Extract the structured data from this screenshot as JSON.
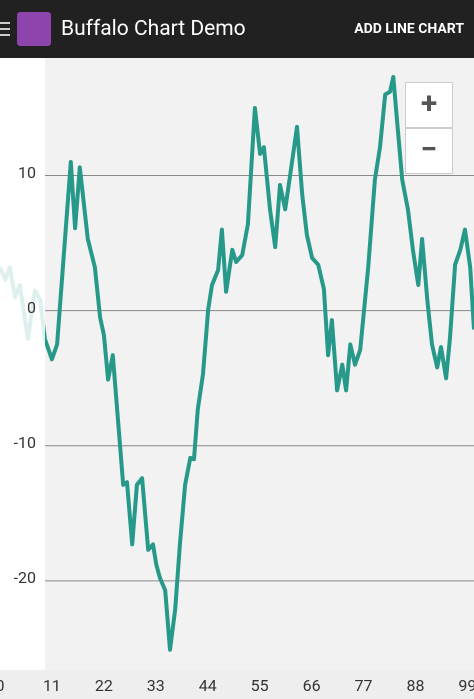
{
  "app_bar": {
    "title": "Buffalo Chart Demo",
    "action": "ADD LINE CHART"
  },
  "zoom_controls": [
    "+",
    "−"
  ],
  "chart_data": {
    "type": "line",
    "x": [
      0,
      1.1,
      2.1,
      3.2,
      4.2,
      5.9,
      7.4,
      8.5,
      9.5,
      11.0,
      12.1,
      13.6,
      15.0,
      15.9,
      16.9,
      18.6,
      20.1,
      21.2,
      22.0,
      22.9,
      23.9,
      25.0,
      26.1,
      26.9,
      28.0,
      29.0,
      30.1,
      31.4,
      32.4,
      33.1,
      33.9,
      35.0,
      36.0,
      37.1,
      38.1,
      39.2,
      40.3,
      41.1,
      41.9,
      43.0,
      44.1,
      44.9,
      46.2,
      47.0,
      47.9,
      49.2,
      50.0,
      51.3,
      52.5,
      54.0,
      55.1,
      55.9,
      57.2,
      58.3,
      59.3,
      60.4,
      61.4,
      62.9,
      64.0,
      65.0,
      66.1,
      67.4,
      68.6,
      69.5,
      70.3,
      71.4,
      72.5,
      73.3,
      74.2,
      75.2,
      76.3,
      78.0,
      79.4,
      80.5,
      81.6,
      82.6,
      83.3,
      84.1,
      85.2,
      86.4,
      87.5,
      88.6,
      89.4,
      90.5,
      91.5,
      92.6,
      93.4,
      94.5,
      95.3,
      96.4,
      97.5,
      98.5,
      99.6,
      100.4
    ],
    "series": [
      {
        "color": "#26998a",
        "values": [
          3.2,
          2.3,
          3.2,
          1.0,
          1.9,
          -2.1,
          1.5,
          0.8,
          -2.1,
          -3.6,
          -2.5,
          4.5,
          11.0,
          6.1,
          10.6,
          5.3,
          3.2,
          -0.5,
          -1.8,
          -5.1,
          -3.3,
          -8.1,
          -12.9,
          -12.7,
          -17.3,
          -12.9,
          -12.4,
          -17.7,
          -17.3,
          -18.8,
          -19.8,
          -20.7,
          -25.1,
          -22.1,
          -17.3,
          -12.9,
          -10.9,
          -11.0,
          -7.3,
          -4.7,
          0.1,
          1.9,
          3.0,
          6.0,
          1.4,
          4.5,
          3.6,
          4.1,
          6.4,
          15.0,
          11.6,
          12.1,
          7.5,
          4.7,
          9.3,
          7.5,
          9.9,
          13.6,
          8.6,
          5.6,
          3.9,
          3.4,
          1.6,
          -3.3,
          -0.7,
          -5.9,
          -4.0,
          -5.9,
          -2.5,
          -4.0,
          -2.9,
          3.2,
          9.7,
          12.1,
          16.0,
          16.2,
          17.3,
          14.1,
          9.7,
          7.5,
          4.4,
          1.9,
          5.3,
          0.8,
          -2.5,
          -4.2,
          -2.7,
          -5.0,
          -2.1,
          3.4,
          4.5,
          6.0,
          3.2,
          -1.4
        ]
      }
    ],
    "xlim": [
      0,
      100.4
    ],
    "ylim": [
      -26.6,
      18.7
    ],
    "xticks": [
      0,
      11,
      22,
      33,
      44,
      55,
      66,
      77,
      88,
      99
    ],
    "yticks": [
      -20,
      -10,
      0,
      10
    ],
    "grid": true
  }
}
